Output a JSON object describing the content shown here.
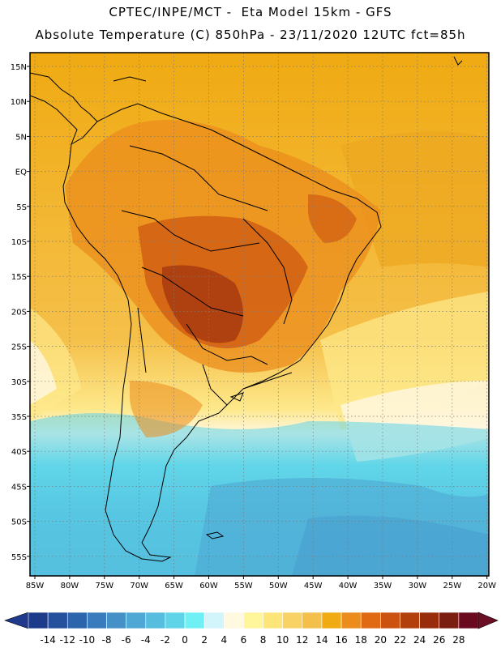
{
  "header": {
    "line1": "CPTEC/INPE/MCT -  Eta Model 15km - GFS",
    "line2": "Absolute Temperature (C) 850hPa - 23/11/2020 12UTC fct=85h"
  },
  "map": {
    "lat_labels": [
      "15N",
      "10N",
      "5N",
      "EQ",
      "5S",
      "10S",
      "15S",
      "20S",
      "25S",
      "30S",
      "35S",
      "40S",
      "45S",
      "50S",
      "55S"
    ],
    "lon_labels": [
      "85W",
      "80W",
      "75W",
      "70W",
      "65W",
      "60W",
      "55W",
      "50W",
      "45W",
      "40W",
      "35W",
      "30W",
      "25W",
      "20W"
    ],
    "grid": "dotted"
  },
  "colorbar": {
    "ticks": [
      "-14",
      "-12",
      "-10",
      "-8",
      "-6",
      "-4",
      "-2",
      "0",
      "2",
      "4",
      "6",
      "8",
      "10",
      "12",
      "14",
      "16",
      "18",
      "20",
      "22",
      "24",
      "26",
      "28"
    ],
    "colors": [
      "#1e3a8a",
      "#24509c",
      "#2d65ad",
      "#3a7bbd",
      "#4690c8",
      "#4fa8d4",
      "#56bddf",
      "#5fd3e8",
      "#6ff0f5",
      "#d2f5fb",
      "#fff9e0",
      "#fff59a",
      "#fde57a",
      "#f8d264",
      "#f3c04c",
      "#f0aa12",
      "#eb8c1c",
      "#e06a14",
      "#cc520f",
      "#b2400d",
      "#982d0c",
      "#7a1e12",
      "#6a0a1e"
    ],
    "low_arrow": "#1f3a8c",
    "high_arrow": "#6b0f24"
  }
}
